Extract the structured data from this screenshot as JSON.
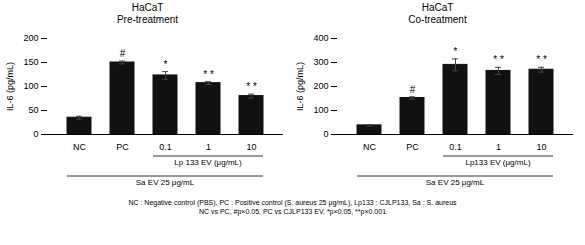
{
  "chart_data": [
    {
      "type": "bar",
      "title": "HaCaT\nPre-treatment",
      "ylabel": "IL-6 (pg/mL)",
      "categories": [
        "NC",
        "PC",
        "0.1",
        "1",
        "10"
      ],
      "values": [
        35,
        150,
        123,
        107,
        80
      ],
      "errors": [
        3,
        3,
        8,
        3,
        4
      ],
      "color": "#111111",
      "error_color": "#444444",
      "ylim": [
        0,
        200
      ],
      "yticks": [
        0,
        50,
        100,
        150,
        200
      ],
      "grid": false,
      "annotations": [
        {
          "category": "PC",
          "text": "#"
        },
        {
          "category": "0.1",
          "text": "*"
        },
        {
          "category": "1",
          "text": "* *"
        },
        {
          "category": "10",
          "text": "* *"
        }
      ],
      "brackets": [
        {
          "from": "0.1",
          "to": "10",
          "label": "Lp 133 EV (μg/mL)"
        },
        {
          "from": "NC",
          "to": "10",
          "label": "Sa EV 25 μg/mL"
        }
      ]
    },
    {
      "type": "bar",
      "title": "HaCaT\nCo-treatment",
      "ylabel": "IL-6 (pg/mL)",
      "categories": [
        "NC",
        "PC",
        "0.1",
        "1",
        "10"
      ],
      "values": [
        38,
        152,
        290,
        265,
        270
      ],
      "errors": [
        3,
        5,
        25,
        15,
        10
      ],
      "color": "#111111",
      "error_color": "#444444",
      "ylim": [
        0,
        400
      ],
      "yticks": [
        0,
        100,
        200,
        300,
        400
      ],
      "grid": false,
      "annotations": [
        {
          "category": "PC",
          "text": "#"
        },
        {
          "category": "0.1",
          "text": "*"
        },
        {
          "category": "1",
          "text": "* *"
        },
        {
          "category": "10",
          "text": "* *"
        }
      ],
      "brackets": [
        {
          "from": "0.1",
          "to": "10",
          "label": "Lp133 EV (μg/mL)"
        },
        {
          "from": "NC",
          "to": "10",
          "label": "Sa EV 25 μg/mL"
        }
      ]
    }
  ],
  "footnote": [
    "NC : Negative control (PBS), PC : Positive control (S. aureus 25 μg/mL), Lp133 : CJLP133, Sa : S. aureus",
    "NC vs PC, #p×0.05, PC vs CJLP133 EV,  *p×0.05, **p×0.001"
  ]
}
